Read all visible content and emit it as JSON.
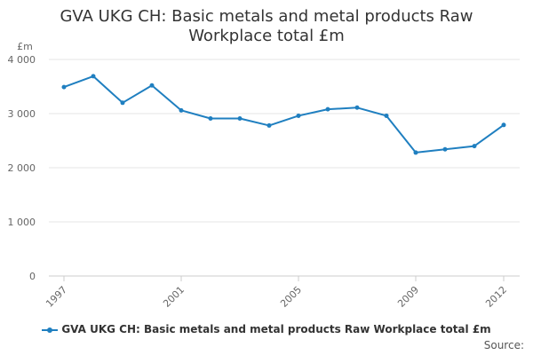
{
  "chart_data": {
    "type": "line",
    "title_lines": [
      "GVA UKG CH: Basic metals and metal products Raw",
      "Workplace total £m"
    ],
    "ylabel": "£m",
    "x": [
      1997,
      1998,
      1999,
      2000,
      2001,
      2002,
      2003,
      2004,
      2005,
      2006,
      2007,
      2008,
      2009,
      2010,
      2011,
      2012
    ],
    "x_tick_labels": [
      "1997",
      "2001",
      "2005",
      "2009",
      "2012"
    ],
    "x_tick_values": [
      1997,
      2001,
      2005,
      2009,
      2012
    ],
    "y_tick_labels": [
      "0",
      "1 000",
      "2 000",
      "3 000",
      "4 000"
    ],
    "y_tick_values": [
      0,
      1000,
      2000,
      3000,
      4000
    ],
    "ylim": [
      0,
      4000
    ],
    "series": [
      {
        "name": "GVA UKG CH: Basic metals and metal products Raw Workplace total £m",
        "color": "#1f7fc0",
        "values": [
          3490,
          3690,
          3200,
          3520,
          3060,
          2910,
          2910,
          2780,
          2960,
          3080,
          3110,
          2960,
          2280,
          2340,
          2400,
          2790
        ]
      }
    ],
    "grid": true,
    "legend_position": "bottom"
  },
  "footer": {
    "source": "Source:"
  }
}
